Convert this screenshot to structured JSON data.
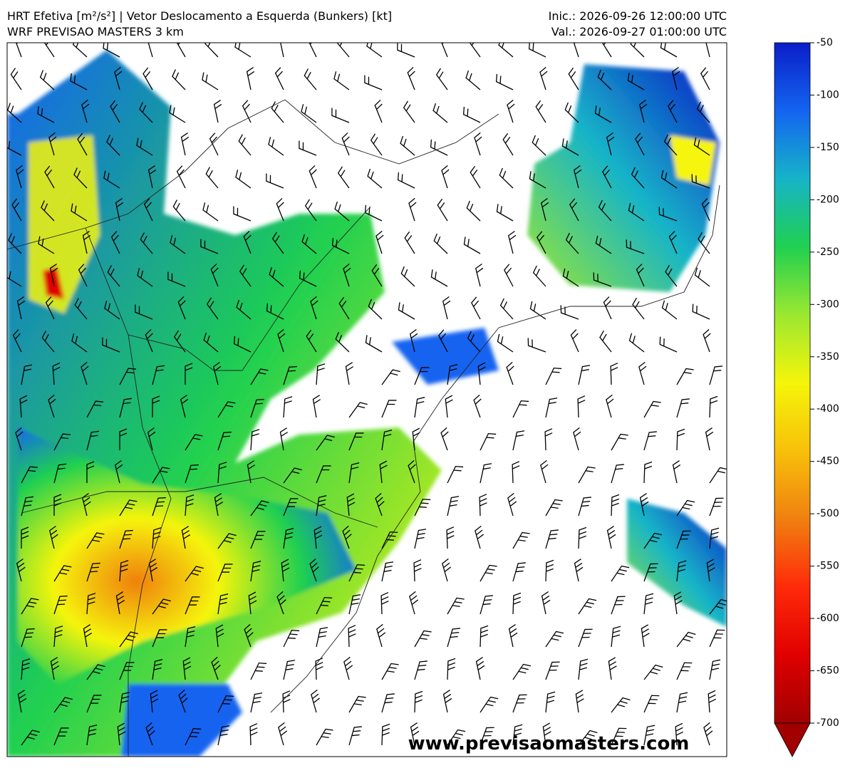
{
  "header": {
    "title": "HRT Efetiva [m²/s²] | Vetor Deslocamento a Esquerda (Bunkers) [kt]",
    "subtitle": "WRF PREVISAO MASTERS 3 km",
    "init": "Inic.: 2026-09-26 12:00:00 UTC",
    "valid": "Val.: 2026-09-27 01:00:00 UTC"
  },
  "colorbar": {
    "lim": [
      -700,
      -50
    ],
    "ticks": [
      -50,
      -100,
      -150,
      -200,
      -250,
      -300,
      -350,
      -400,
      -450,
      -500,
      -550,
      -600,
      -650,
      -700
    ],
    "colors": [
      "#0a1ec8",
      "#1464f0",
      "#16b4c8",
      "#20d050",
      "#9be830",
      "#f5f50a",
      "#f8c00a",
      "#f08010",
      "#ff2a0a",
      "#e00000",
      "#a00000"
    ]
  },
  "watermark": "www.previsaomasters.com"
}
